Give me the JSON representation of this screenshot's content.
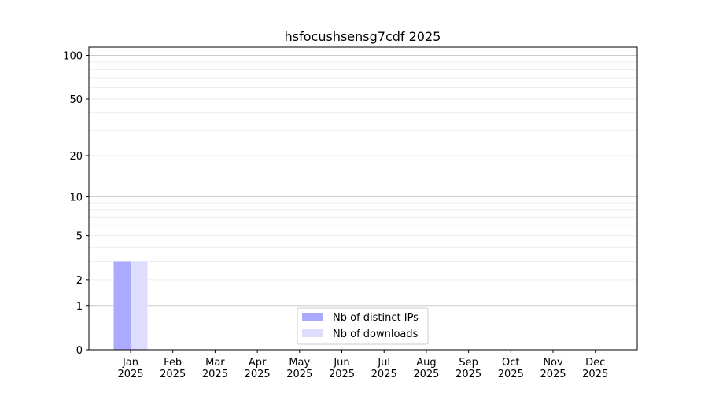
{
  "chart_data": {
    "type": "bar",
    "title": "hsfocushsensg7cdf 2025",
    "xlabel": "",
    "ylabel": "",
    "yscale": "log(1+y)",
    "ylim": [
      0,
      114
    ],
    "yticks": [
      0,
      1,
      2,
      5,
      10,
      20,
      50,
      100
    ],
    "ytick_labels": [
      "0",
      "1",
      "2",
      "5",
      "10",
      "20",
      "50",
      "100"
    ],
    "grid": true,
    "categories": [
      "Jan\n2025",
      "Feb\n2025",
      "Mar\n2025",
      "Apr\n2025",
      "May\n2025",
      "Jun\n2025",
      "Jul\n2025",
      "Aug\n2025",
      "Sep\n2025",
      "Oct\n2025",
      "Nov\n2025",
      "Dec\n2025"
    ],
    "series": [
      {
        "name": "Nb of distinct IPs",
        "color": "#aaaaff",
        "values": [
          3,
          0,
          0,
          0,
          0,
          0,
          0,
          0,
          0,
          0,
          0,
          0
        ]
      },
      {
        "name": "Nb of downloads",
        "color": "#ddddff",
        "values": [
          3,
          0,
          0,
          0,
          0,
          0,
          0,
          0,
          0,
          0,
          0,
          0
        ]
      }
    ],
    "legend": "bottom-center"
  }
}
